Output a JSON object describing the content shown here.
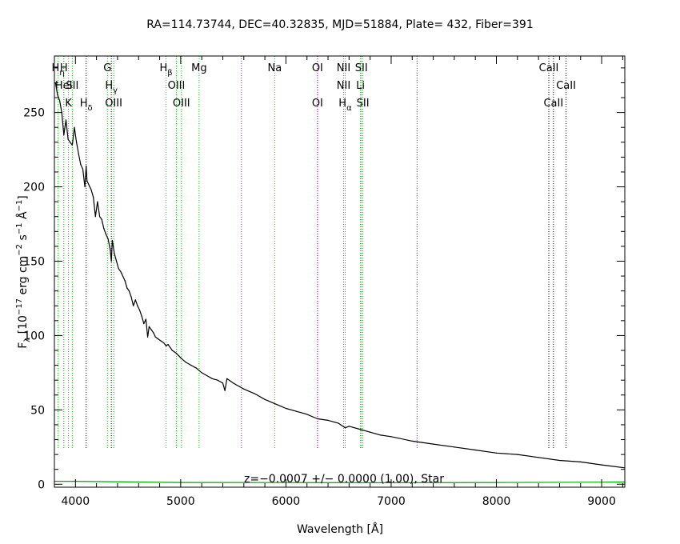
{
  "chart_data": {
    "type": "line",
    "title": "RA=114.73744, DEC=40.32835, MJD=51884, Plate=  432, Fiber=391",
    "xlabel": {
      "text": "Wavelength [",
      "unit": "Å",
      "close": "]"
    },
    "ylabel": {
      "pre": "F",
      "pre_sub": "λ",
      "a": " [10",
      "a_sup": "−17",
      "b": " erg cm",
      "b_sup": "−2",
      "c": " s",
      "c_sup": "−1",
      "d": " Å",
      "d_sup": "−1",
      "e": "]"
    },
    "xlim": [
      3800,
      9220
    ],
    "ylim": [
      -2,
      288
    ],
    "xticks": [
      4000,
      5000,
      6000,
      7000,
      8000,
      9000
    ],
    "xtick_labels": [
      "4000",
      "5000",
      "6000",
      "7000",
      "8000",
      "9000"
    ],
    "yticks": [
      0,
      50,
      100,
      150,
      200,
      250
    ],
    "ytick_labels": [
      "0",
      "50",
      "100",
      "150",
      "200",
      "250"
    ],
    "annotation": "z=−0.0007 +/− 0.0000 (1.00), Star",
    "series": [
      {
        "role": "flux",
        "color": "#000000",
        "x": [
          3810,
          3830,
          3850,
          3870,
          3890,
          3910,
          3930,
          3950,
          3970,
          3990,
          4010,
          4030,
          4050,
          4070,
          4090,
          4102,
          4110,
          4130,
          4150,
          4170,
          4190,
          4210,
          4230,
          4250,
          4270,
          4290,
          4310,
          4330,
          4341,
          4350,
          4370,
          4390,
          4410,
          4430,
          4450,
          4470,
          4490,
          4510,
          4530,
          4550,
          4570,
          4590,
          4610,
          4630,
          4650,
          4670,
          4686,
          4700,
          4720,
          4740,
          4760,
          4780,
          4800,
          4820,
          4840,
          4861,
          4880,
          4900,
          4920,
          4940,
          4960,
          5000,
          5050,
          5100,
          5150,
          5200,
          5250,
          5300,
          5350,
          5400,
          5420,
          5440,
          5500,
          5600,
          5700,
          5800,
          5900,
          6000,
          6100,
          6200,
          6300,
          6400,
          6500,
          6563,
          6600,
          6700,
          6800,
          6900,
          7000,
          7200,
          7400,
          7600,
          7800,
          8000,
          8200,
          8400,
          8600,
          8800,
          9000,
          9220
        ],
        "y": [
          270,
          262,
          258,
          250,
          235,
          245,
          232,
          230,
          228,
          240,
          230,
          222,
          215,
          212,
          200,
          214,
          204,
          201,
          198,
          193,
          180,
          190,
          180,
          178,
          172,
          168,
          165,
          158,
          150,
          164,
          155,
          150,
          145,
          143,
          140,
          137,
          132,
          130,
          126,
          120,
          124,
          120,
          117,
          113,
          108,
          111,
          99,
          106,
          104,
          102,
          99,
          98,
          97,
          96,
          95,
          93,
          94,
          92,
          90,
          89,
          88,
          85,
          82,
          80,
          78,
          75,
          73,
          71,
          70,
          68,
          63,
          71,
          68,
          64,
          61,
          57,
          54,
          51,
          49,
          47,
          44,
          43,
          41,
          38,
          39,
          37,
          35,
          33,
          32,
          29,
          27,
          25,
          23,
          21,
          20,
          18,
          16,
          15,
          13,
          11
        ]
      },
      {
        "role": "error",
        "color": "#00aa00",
        "x": [
          3800,
          4000,
          5000,
          6000,
          7000,
          8000,
          9000,
          9220
        ],
        "y": [
          2,
          2,
          1.2,
          1.1,
          1.0,
          1.2,
          1.4,
          1.5
        ]
      }
    ],
    "lines": [
      {
        "label": "Hη",
        "wl": 3835,
        "row": 0,
        "color": "#00cc00"
      },
      {
        "label": "H",
        "wl": 3889,
        "row": 0,
        "color": "#00cc00"
      },
      {
        "label": "HeI",
        "wl": 3889,
        "row": 1,
        "color": "#00cc00"
      },
      {
        "label": "K",
        "wl": 3934,
        "row": 2,
        "color": "#00cc00"
      },
      {
        "label": "SII",
        "wl": 3970,
        "row": 1,
        "color": "#00cc00"
      },
      {
        "label": "Hδ",
        "wl": 4102,
        "row": 2,
        "color": "#000000"
      },
      {
        "label": "G",
        "wl": 4304,
        "row": 0,
        "color": "#00cc00"
      },
      {
        "label": "Hγ",
        "wl": 4341,
        "row": 1,
        "color": "#000000"
      },
      {
        "label": "OIII",
        "wl": 4363,
        "row": 2,
        "color": "#00cc00"
      },
      {
        "label": "Hβ",
        "wl": 4861,
        "row": 0,
        "color": "#00cc00"
      },
      {
        "label": "OIII",
        "wl": 4959,
        "row": 1,
        "color": "#00cc00"
      },
      {
        "label": "OIII",
        "wl": 5007,
        "row": 2,
        "color": "#00cc00"
      },
      {
        "label": "Mg",
        "wl": 5175,
        "row": 0,
        "color": "#00cc00"
      },
      {
        "label": "",
        "wl": 5577,
        "row": -1,
        "color": "#cc00cc"
      },
      {
        "label": "Na",
        "wl": 5893,
        "row": 0,
        "color": "#00cc00"
      },
      {
        "label": "OI",
        "wl": 6300,
        "row": 0,
        "color": "#000000"
      },
      {
        "label": "OI",
        "wl": 6300,
        "row": 2,
        "color": "#cc00cc"
      },
      {
        "label": "NII",
        "wl": 6548,
        "row": 0,
        "color": "#00cc00"
      },
      {
        "label": "NII",
        "wl": 6548,
        "row": 1,
        "color": "#00cc00"
      },
      {
        "label": "Hα",
        "wl": 6563,
        "row": 2,
        "color": "#00cc00"
      },
      {
        "label": "SII",
        "wl": 6717,
        "row": 0,
        "color": "#00cc00"
      },
      {
        "label": "Li",
        "wl": 6708,
        "row": 1,
        "color": "#00cc00"
      },
      {
        "label": "SII",
        "wl": 6731,
        "row": 2,
        "color": "#00cc00"
      },
      {
        "label": "",
        "wl": 7246,
        "row": -1,
        "color": "#cc00cc"
      },
      {
        "label": "CaII",
        "wl": 8498,
        "row": 0,
        "color": "#000000"
      },
      {
        "label": "CaII",
        "wl": 8542,
        "row": 2,
        "color": "#000000"
      },
      {
        "label": "CaII",
        "wl": 8662,
        "row": 1,
        "color": "#000000"
      }
    ],
    "grid": false,
    "legend": "none"
  }
}
